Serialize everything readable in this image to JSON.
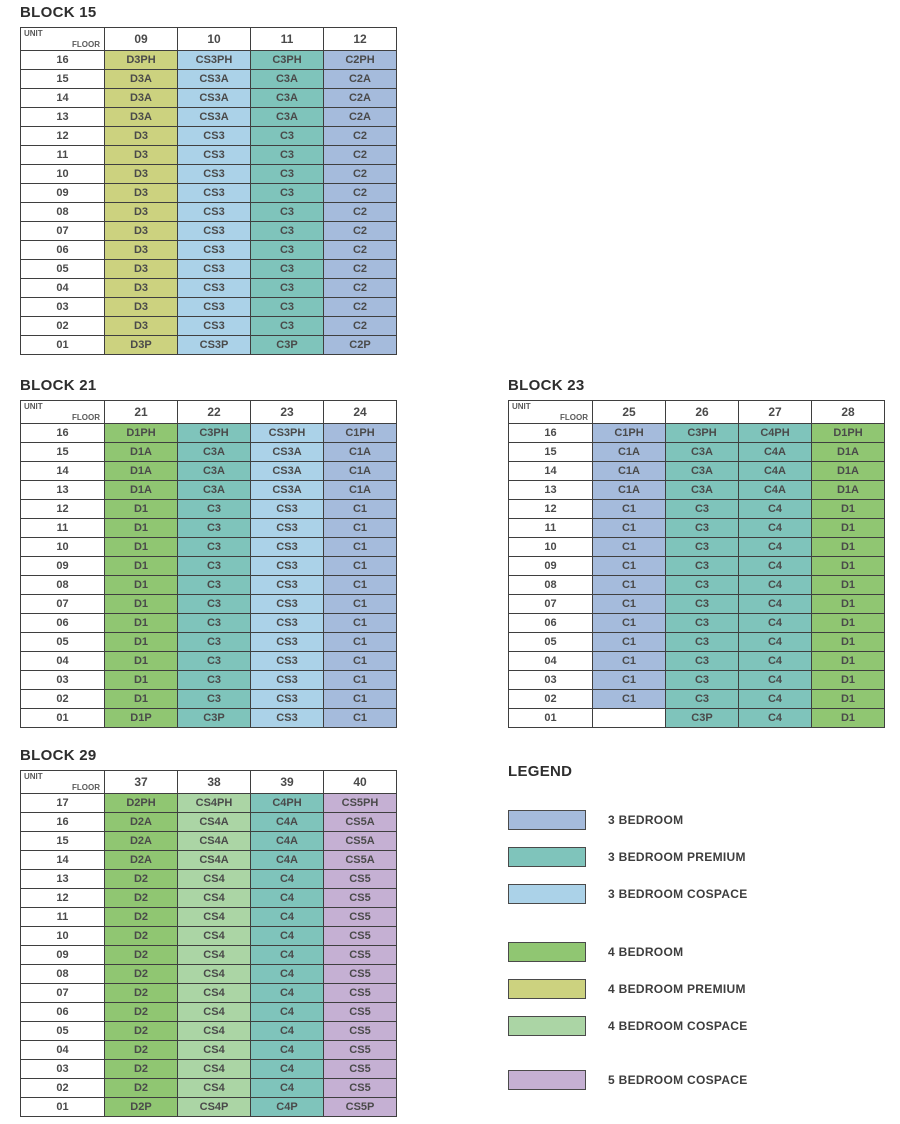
{
  "colors": {
    "bed3": "#a5bbdc",
    "bed3_premium": "#7fc4bb",
    "bed3_cospace": "#abd2e8",
    "bed4": "#90c672",
    "bed4_premium": "#ccd27f",
    "bed4_cospace": "#abd5a5",
    "bed5_cospace": "#c5b0d3",
    "empty": "#ffffff",
    "grid_border": "#3f3f3f"
  },
  "blocks": [
    {
      "title": "BLOCK 15",
      "corner": {
        "unit": "UNIT",
        "floor": "FLOOR"
      },
      "columns": [
        "09",
        "10",
        "11",
        "12"
      ],
      "column_types": [
        "bed4_premium",
        "bed3_cospace",
        "bed3_premium",
        "bed3"
      ],
      "rows": [
        {
          "floor": "16",
          "cells": [
            "D3PH",
            "CS3PH",
            "C3PH",
            "C2PH"
          ]
        },
        {
          "floor": "15",
          "cells": [
            "D3A",
            "CS3A",
            "C3A",
            "C2A"
          ]
        },
        {
          "floor": "14",
          "cells": [
            "D3A",
            "CS3A",
            "C3A",
            "C2A"
          ]
        },
        {
          "floor": "13",
          "cells": [
            "D3A",
            "CS3A",
            "C3A",
            "C2A"
          ]
        },
        {
          "floor": "12",
          "cells": [
            "D3",
            "CS3",
            "C3",
            "C2"
          ]
        },
        {
          "floor": "11",
          "cells": [
            "D3",
            "CS3",
            "C3",
            "C2"
          ]
        },
        {
          "floor": "10",
          "cells": [
            "D3",
            "CS3",
            "C3",
            "C2"
          ]
        },
        {
          "floor": "09",
          "cells": [
            "D3",
            "CS3",
            "C3",
            "C2"
          ]
        },
        {
          "floor": "08",
          "cells": [
            "D3",
            "CS3",
            "C3",
            "C2"
          ]
        },
        {
          "floor": "07",
          "cells": [
            "D3",
            "CS3",
            "C3",
            "C2"
          ]
        },
        {
          "floor": "06",
          "cells": [
            "D3",
            "CS3",
            "C3",
            "C2"
          ]
        },
        {
          "floor": "05",
          "cells": [
            "D3",
            "CS3",
            "C3",
            "C2"
          ]
        },
        {
          "floor": "04",
          "cells": [
            "D3",
            "CS3",
            "C3",
            "C2"
          ]
        },
        {
          "floor": "03",
          "cells": [
            "D3",
            "CS3",
            "C3",
            "C2"
          ]
        },
        {
          "floor": "02",
          "cells": [
            "D3",
            "CS3",
            "C3",
            "C2"
          ]
        },
        {
          "floor": "01",
          "cells": [
            "D3P",
            "CS3P",
            "C3P",
            "C2P"
          ]
        }
      ]
    },
    {
      "title": "BLOCK 21",
      "corner": {
        "unit": "UNIT",
        "floor": "FLOOR"
      },
      "columns": [
        "21",
        "22",
        "23",
        "24"
      ],
      "column_types": [
        "bed4",
        "bed3_premium",
        "bed3_cospace",
        "bed3"
      ],
      "rows": [
        {
          "floor": "16",
          "cells": [
            "D1PH",
            "C3PH",
            "CS3PH",
            "C1PH"
          ]
        },
        {
          "floor": "15",
          "cells": [
            "D1A",
            "C3A",
            "CS3A",
            "C1A"
          ]
        },
        {
          "floor": "14",
          "cells": [
            "D1A",
            "C3A",
            "CS3A",
            "C1A"
          ]
        },
        {
          "floor": "13",
          "cells": [
            "D1A",
            "C3A",
            "CS3A",
            "C1A"
          ]
        },
        {
          "floor": "12",
          "cells": [
            "D1",
            "C3",
            "CS3",
            "C1"
          ]
        },
        {
          "floor": "11",
          "cells": [
            "D1",
            "C3",
            "CS3",
            "C1"
          ]
        },
        {
          "floor": "10",
          "cells": [
            "D1",
            "C3",
            "CS3",
            "C1"
          ]
        },
        {
          "floor": "09",
          "cells": [
            "D1",
            "C3",
            "CS3",
            "C1"
          ]
        },
        {
          "floor": "08",
          "cells": [
            "D1",
            "C3",
            "CS3",
            "C1"
          ]
        },
        {
          "floor": "07",
          "cells": [
            "D1",
            "C3",
            "CS3",
            "C1"
          ]
        },
        {
          "floor": "06",
          "cells": [
            "D1",
            "C3",
            "CS3",
            "C1"
          ]
        },
        {
          "floor": "05",
          "cells": [
            "D1",
            "C3",
            "CS3",
            "C1"
          ]
        },
        {
          "floor": "04",
          "cells": [
            "D1",
            "C3",
            "CS3",
            "C1"
          ]
        },
        {
          "floor": "03",
          "cells": [
            "D1",
            "C3",
            "CS3",
            "C1"
          ]
        },
        {
          "floor": "02",
          "cells": [
            "D1",
            "C3",
            "CS3",
            "C1"
          ]
        },
        {
          "floor": "01",
          "cells": [
            "D1P",
            "C3P",
            "CS3",
            "C1"
          ]
        }
      ]
    },
    {
      "title": "BLOCK 23",
      "corner": {
        "unit": "UNIT",
        "floor": "FLOOR"
      },
      "columns": [
        "25",
        "26",
        "27",
        "28"
      ],
      "column_types": [
        "bed3",
        "bed3_premium",
        "bed3_premium",
        "bed4"
      ],
      "rows": [
        {
          "floor": "16",
          "cells": [
            "C1PH",
            "C3PH",
            "C4PH",
            "D1PH"
          ]
        },
        {
          "floor": "15",
          "cells": [
            "C1A",
            "C3A",
            "C4A",
            "D1A"
          ]
        },
        {
          "floor": "14",
          "cells": [
            "C1A",
            "C3A",
            "C4A",
            "D1A"
          ]
        },
        {
          "floor": "13",
          "cells": [
            "C1A",
            "C3A",
            "C4A",
            "D1A"
          ]
        },
        {
          "floor": "12",
          "cells": [
            "C1",
            "C3",
            "C4",
            "D1"
          ]
        },
        {
          "floor": "11",
          "cells": [
            "C1",
            "C3",
            "C4",
            "D1"
          ]
        },
        {
          "floor": "10",
          "cells": [
            "C1",
            "C3",
            "C4",
            "D1"
          ]
        },
        {
          "floor": "09",
          "cells": [
            "C1",
            "C3",
            "C4",
            "D1"
          ]
        },
        {
          "floor": "08",
          "cells": [
            "C1",
            "C3",
            "C4",
            "D1"
          ]
        },
        {
          "floor": "07",
          "cells": [
            "C1",
            "C3",
            "C4",
            "D1"
          ]
        },
        {
          "floor": "06",
          "cells": [
            "C1",
            "C3",
            "C4",
            "D1"
          ]
        },
        {
          "floor": "05",
          "cells": [
            "C1",
            "C3",
            "C4",
            "D1"
          ]
        },
        {
          "floor": "04",
          "cells": [
            "C1",
            "C3",
            "C4",
            "D1"
          ]
        },
        {
          "floor": "03",
          "cells": [
            "C1",
            "C3",
            "C4",
            "D1"
          ]
        },
        {
          "floor": "02",
          "cells": [
            "C1",
            "C3",
            "C4",
            "D1"
          ]
        },
        {
          "floor": "01",
          "cells": [
            "",
            "C3P",
            "C4",
            "D1"
          ]
        }
      ]
    },
    {
      "title": "BLOCK 29",
      "corner": {
        "unit": "UNIT",
        "floor": "FLOOR"
      },
      "columns": [
        "37",
        "38",
        "39",
        "40"
      ],
      "column_types": [
        "bed4",
        "bed4_cospace",
        "bed3_premium",
        "bed5_cospace"
      ],
      "rows": [
        {
          "floor": "17",
          "cells": [
            "D2PH",
            "CS4PH",
            "C4PH",
            "CS5PH"
          ]
        },
        {
          "floor": "16",
          "cells": [
            "D2A",
            "CS4A",
            "C4A",
            "CS5A"
          ]
        },
        {
          "floor": "15",
          "cells": [
            "D2A",
            "CS4A",
            "C4A",
            "CS5A"
          ]
        },
        {
          "floor": "14",
          "cells": [
            "D2A",
            "CS4A",
            "C4A",
            "CS5A"
          ]
        },
        {
          "floor": "13",
          "cells": [
            "D2",
            "CS4",
            "C4",
            "CS5"
          ]
        },
        {
          "floor": "12",
          "cells": [
            "D2",
            "CS4",
            "C4",
            "CS5"
          ]
        },
        {
          "floor": "11",
          "cells": [
            "D2",
            "CS4",
            "C4",
            "CS5"
          ]
        },
        {
          "floor": "10",
          "cells": [
            "D2",
            "CS4",
            "C4",
            "CS5"
          ]
        },
        {
          "floor": "09",
          "cells": [
            "D2",
            "CS4",
            "C4",
            "CS5"
          ]
        },
        {
          "floor": "08",
          "cells": [
            "D2",
            "CS4",
            "C4",
            "CS5"
          ]
        },
        {
          "floor": "07",
          "cells": [
            "D2",
            "CS4",
            "C4",
            "CS5"
          ]
        },
        {
          "floor": "06",
          "cells": [
            "D2",
            "CS4",
            "C4",
            "CS5"
          ]
        },
        {
          "floor": "05",
          "cells": [
            "D2",
            "CS4",
            "C4",
            "CS5"
          ]
        },
        {
          "floor": "04",
          "cells": [
            "D2",
            "CS4",
            "C4",
            "CS5"
          ]
        },
        {
          "floor": "03",
          "cells": [
            "D2",
            "CS4",
            "C4",
            "CS5"
          ]
        },
        {
          "floor": "02",
          "cells": [
            "D2",
            "CS4",
            "C4",
            "CS5"
          ]
        },
        {
          "floor": "01",
          "cells": [
            "D2P",
            "CS4P",
            "C4P",
            "CS5P"
          ]
        }
      ]
    }
  ],
  "legend": {
    "title": "LEGEND",
    "groups": [
      [
        {
          "label": "3 BEDROOM",
          "type": "bed3"
        },
        {
          "label": "3 BEDROOM PREMIUM",
          "type": "bed3_premium"
        },
        {
          "label": "3 BEDROOM COSPACE",
          "type": "bed3_cospace"
        }
      ],
      [
        {
          "label": "4 BEDROOM",
          "type": "bed4"
        },
        {
          "label": "4 BEDROOM PREMIUM",
          "type": "bed4_premium"
        },
        {
          "label": "4 BEDROOM COSPACE",
          "type": "bed4_cospace"
        }
      ],
      [
        {
          "label": "5 BEDROOM COSPACE",
          "type": "bed5_cospace"
        }
      ]
    ]
  }
}
